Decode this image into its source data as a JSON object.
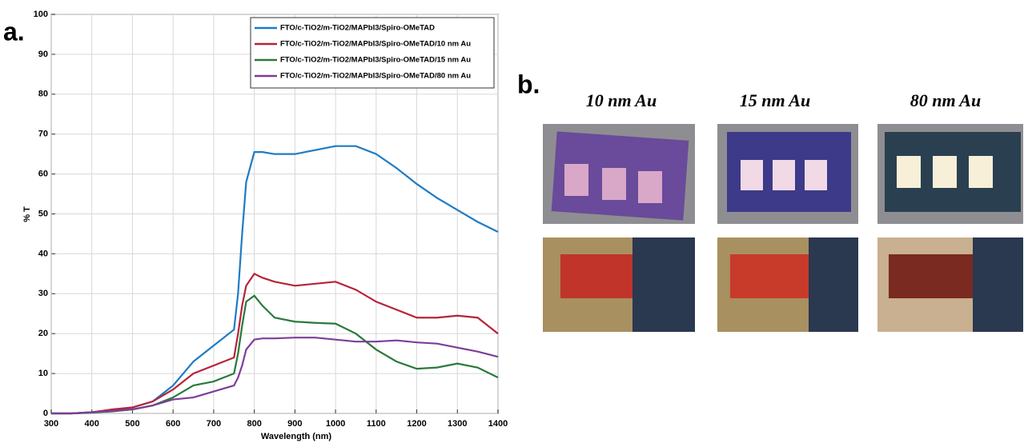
{
  "panel_labels": [
    "a.",
    "b."
  ],
  "chart_data": {
    "type": "line",
    "xlabel": "Wavelength (nm)",
    "ylabel": "% T",
    "x": [
      300,
      350,
      400,
      450,
      500,
      550,
      600,
      650,
      700,
      750,
      760,
      770,
      780,
      800,
      820,
      850,
      900,
      950,
      1000,
      1050,
      1100,
      1150,
      1200,
      1250,
      1300,
      1350,
      1400
    ],
    "series": [
      {
        "name": "FTO/c-TiO2/m-TiO2/MAPbI3/Spiro-OMeTAD",
        "color": "#1f7bc4",
        "values": [
          0,
          0,
          0.3,
          0.8,
          1.5,
          3,
          7,
          13,
          17,
          21,
          30,
          45,
          58,
          65.5,
          65.5,
          65,
          65,
          66,
          67,
          67,
          65,
          61.5,
          57.5,
          54,
          51,
          48,
          45.5
        ]
      },
      {
        "name": "FTO/c-TiO2/m-TiO2/MAPbI3/Spiro-OMeTAD/10 nm Au",
        "color": "#b5243a",
        "values": [
          0,
          0,
          0.3,
          1,
          1.5,
          3,
          6,
          10,
          12,
          14,
          20,
          27,
          32,
          35,
          34,
          33,
          32,
          32.5,
          33,
          31,
          28,
          26,
          24,
          24,
          24.5,
          24,
          20
        ]
      },
      {
        "name": "FTO/c-TiO2/m-TiO2/MAPbI3/Spiro-OMeTAD/15 nm Au",
        "color": "#2a7a3a",
        "values": [
          0,
          0,
          0.2,
          0.5,
          1,
          2,
          4,
          7,
          8,
          10,
          15,
          22,
          28,
          29.5,
          27,
          24,
          23,
          22.7,
          22.5,
          20,
          16,
          13,
          11.2,
          11.5,
          12.5,
          11.5,
          9
        ]
      },
      {
        "name": "FTO/c-TiO2/m-TiO2/MAPbI3/Spiro-OMeTAD/80 nm Au",
        "color": "#7e3d98",
        "values": [
          0,
          0,
          0.3,
          0.6,
          1,
          2,
          3.5,
          4,
          5.5,
          7,
          9,
          12,
          16,
          18.5,
          18.8,
          18.8,
          19,
          19,
          18.5,
          18,
          18,
          18.3,
          17.8,
          17.5,
          16.5,
          15.5,
          14.2
        ]
      }
    ],
    "xlim": [
      300,
      1400
    ],
    "xticks": [
      300,
      400,
      500,
      600,
      700,
      800,
      900,
      1000,
      1100,
      1200,
      1300,
      1400
    ],
    "ylim": [
      0,
      100
    ],
    "yticks": [
      0,
      10,
      20,
      30,
      40,
      50,
      60,
      70,
      80,
      90,
      100
    ],
    "grid": true,
    "legend": "upper right"
  },
  "photos": {
    "labels": [
      "10 nm Au",
      "15 nm Au",
      "80 nm Au"
    ]
  }
}
